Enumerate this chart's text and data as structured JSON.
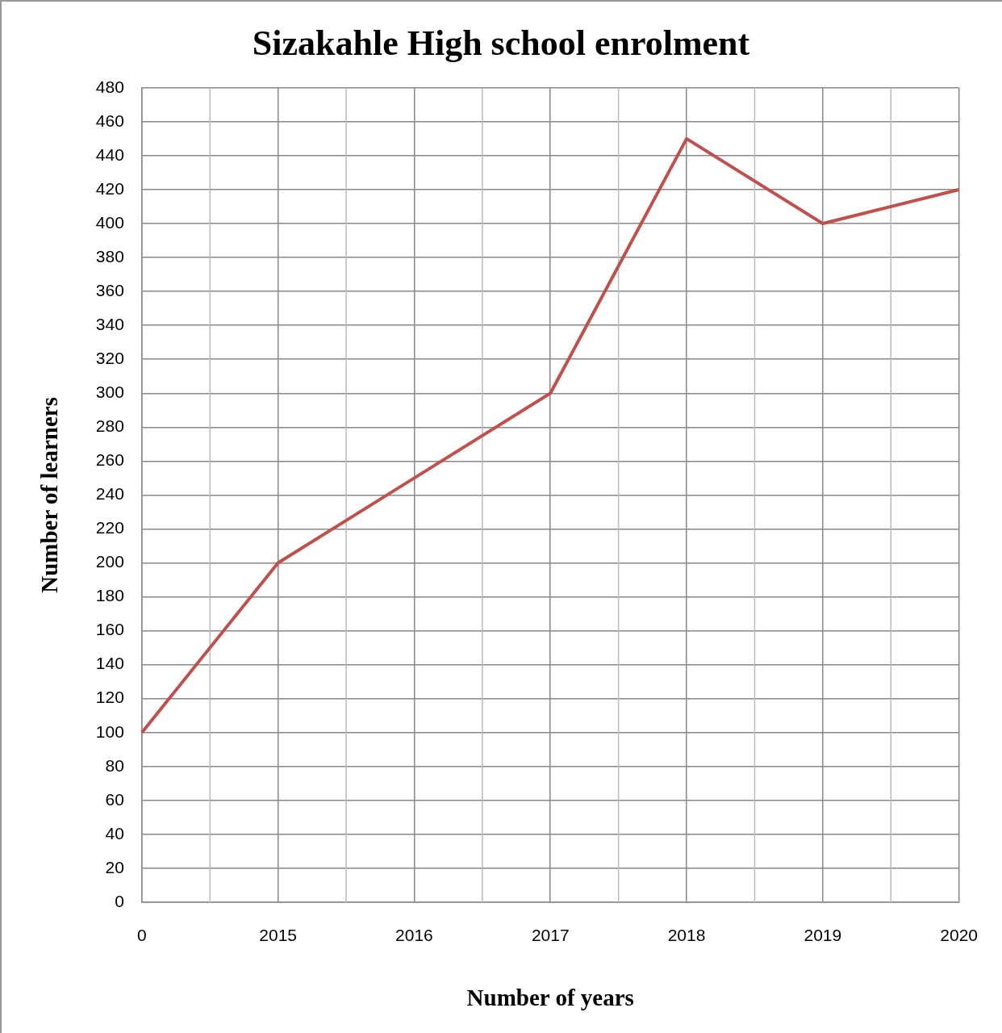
{
  "chart_data": {
    "type": "line",
    "title": "Sizakahle High school enrolment",
    "xlabel": "Number of years",
    "ylabel": "Number of learners",
    "categories": [
      "0",
      "2015",
      "2016",
      "2017",
      "2018",
      "2019",
      "2020"
    ],
    "series": [
      {
        "color": "#c0504d",
        "values": [
          100,
          200,
          250,
          300,
          450,
          400,
          420
        ]
      }
    ],
    "ylim": [
      0,
      480
    ],
    "yticks": [
      0,
      20,
      40,
      60,
      80,
      100,
      120,
      140,
      160,
      180,
      200,
      220,
      240,
      260,
      280,
      300,
      320,
      340,
      360,
      380,
      400,
      420,
      440,
      460,
      480
    ],
    "grid": true,
    "legend": false,
    "marker": "none",
    "line_style": "solid"
  }
}
